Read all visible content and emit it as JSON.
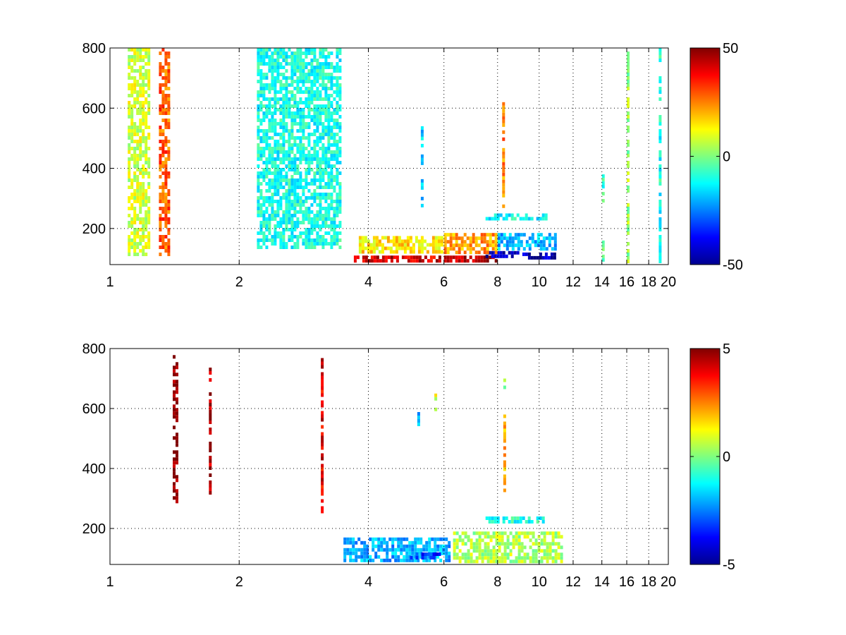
{
  "chart_data": [
    {
      "type": "heatmap",
      "title": "",
      "xlabel": "",
      "ylabel": "",
      "xlim": [
        1,
        20
      ],
      "ylim": [
        80,
        800
      ],
      "x_scale": "log",
      "x_ticks": [
        1,
        2,
        4,
        6,
        8,
        10,
        12,
        14,
        16,
        18,
        20
      ],
      "x_tick_labels": [
        "1",
        "2",
        "4",
        "6",
        "8",
        "10",
        "12",
        "14",
        "16",
        "18",
        "20"
      ],
      "y_ticks": [
        200,
        400,
        600,
        800
      ],
      "y_tick_labels": [
        "200",
        "400",
        "600",
        "800"
      ],
      "grid": true,
      "colormap": "jet",
      "clim": [
        -50,
        50
      ],
      "colorbar_ticks": [
        -50,
        0,
        50
      ],
      "colorbar_tick_labels": [
        "-50",
        "0",
        "50"
      ],
      "blobs": [
        {
          "x": [
            3.7,
            6.0
          ],
          "y": [
            80,
            110
          ],
          "value": 42
        },
        {
          "x": [
            6.0,
            8.0
          ],
          "y": [
            80,
            110
          ],
          "value": 45
        },
        {
          "x": [
            7.5,
            9.0
          ],
          "y": [
            95,
            125
          ],
          "value": -44
        },
        {
          "x": [
            9.0,
            11.0
          ],
          "y": [
            85,
            120
          ],
          "value": -45
        },
        {
          "x": [
            3.8,
            6.0
          ],
          "y": [
            110,
            175
          ],
          "value": 15
        },
        {
          "x": [
            6.0,
            8.0
          ],
          "y": [
            110,
            185
          ],
          "value": 22
        },
        {
          "x": [
            8.0,
            11.0
          ],
          "y": [
            120,
            185
          ],
          "value": -20
        },
        {
          "x": [
            7.5,
            10.5
          ],
          "y": [
            215,
            250
          ],
          "value": -12
        },
        {
          "x": [
            1.3,
            1.4
          ],
          "y": [
            100,
            800
          ],
          "value": 28
        },
        {
          "x": [
            1.1,
            1.25
          ],
          "y": [
            100,
            800
          ],
          "value": 8
        },
        {
          "x": [
            2.2,
            3.5
          ],
          "y": [
            120,
            800
          ],
          "value": -10
        },
        {
          "x": [
            8.2,
            8.35
          ],
          "y": [
            250,
            620
          ],
          "value": 25
        },
        {
          "x": [
            5.3,
            5.4
          ],
          "y": [
            240,
            540
          ],
          "value": -18
        },
        {
          "x": [
            14.0,
            14.15
          ],
          "y": [
            280,
            380
          ],
          "value": -8
        },
        {
          "x": [
            14.0,
            14.15
          ],
          "y": [
            80,
            160
          ],
          "value": -5
        },
        {
          "x": [
            19.0,
            19.15
          ],
          "y": [
            80,
            800
          ],
          "value": -10
        },
        {
          "x": [
            16.0,
            16.1
          ],
          "y": [
            80,
            800
          ],
          "value": 3
        }
      ]
    },
    {
      "type": "heatmap",
      "title": "",
      "xlabel": "",
      "ylabel": "",
      "xlim": [
        1,
        20
      ],
      "ylim": [
        80,
        800
      ],
      "x_scale": "log",
      "x_ticks": [
        1,
        2,
        4,
        6,
        8,
        10,
        12,
        14,
        16,
        18,
        20
      ],
      "x_tick_labels": [
        "1",
        "2",
        "4",
        "6",
        "8",
        "10",
        "12",
        "14",
        "16",
        "18",
        "20"
      ],
      "y_ticks": [
        200,
        400,
        600,
        800
      ],
      "y_tick_labels": [
        "200",
        "400",
        "600",
        "800"
      ],
      "grid": true,
      "colormap": "jet",
      "clim": [
        -5,
        5
      ],
      "colorbar_ticks": [
        -5,
        0,
        5
      ],
      "colorbar_tick_labels": [
        "-5",
        "0",
        "5"
      ],
      "blobs": [
        {
          "x": [
            3.5,
            6.3
          ],
          "y": [
            80,
            170
          ],
          "value": -2
        },
        {
          "x": [
            5.0,
            6.0
          ],
          "y": [
            85,
            120
          ],
          "value": -3.3
        },
        {
          "x": [
            6.3,
            11.5
          ],
          "y": [
            80,
            190
          ],
          "value": 0.5
        },
        {
          "x": [
            7.5,
            10.5
          ],
          "y": [
            210,
            240
          ],
          "value": -1
        },
        {
          "x": [
            8.25,
            8.4
          ],
          "y": [
            310,
            580
          ],
          "value": 2
        },
        {
          "x": [
            8.25,
            8.4
          ],
          "y": [
            660,
            700
          ],
          "value": 0
        },
        {
          "x": [
            1.4,
            1.45
          ],
          "y": [
            280,
            790
          ],
          "value": 5
        },
        {
          "x": [
            1.7,
            1.75
          ],
          "y": [
            300,
            760
          ],
          "value": 4.5
        },
        {
          "x": [
            3.1,
            3.15
          ],
          "y": [
            240,
            780
          ],
          "value": 4
        },
        {
          "x": [
            5.7,
            5.8
          ],
          "y": [
            580,
            650
          ],
          "value": 1
        },
        {
          "x": [
            5.2,
            5.25
          ],
          "y": [
            540,
            600
          ],
          "value": -2
        }
      ]
    }
  ]
}
